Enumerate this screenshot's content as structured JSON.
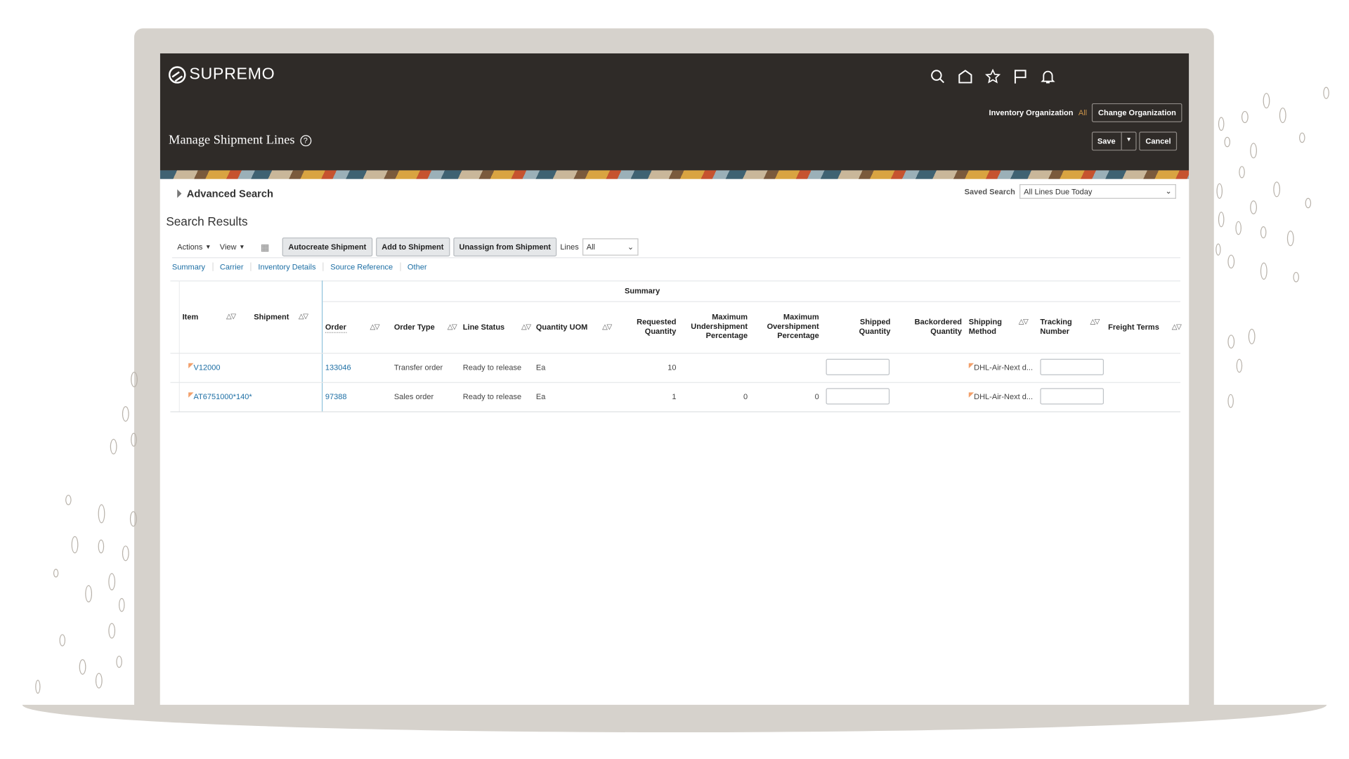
{
  "app": {
    "brand": "SUPREMO",
    "page_title": "Manage Shipment Lines"
  },
  "header_icons": [
    "search-icon",
    "home-icon",
    "star-icon",
    "flag-icon",
    "bell-icon"
  ],
  "org": {
    "label": "Inventory Organization",
    "value": "All",
    "change_button": "Change Organization"
  },
  "actions": {
    "save": "Save",
    "cancel": "Cancel"
  },
  "search": {
    "advanced": "Advanced Search",
    "saved_label": "Saved Search",
    "saved_value": "All Lines Due Today"
  },
  "results": {
    "title": "Search Results"
  },
  "toolbar": {
    "actions": "Actions",
    "view": "View",
    "autocreate": "Autocreate Shipment",
    "add": "Add to Shipment",
    "unassign": "Unassign from Shipment",
    "lines_label": "Lines",
    "lines_value": "All"
  },
  "tabs": [
    "Summary",
    "Carrier",
    "Inventory Details",
    "Source Reference",
    "Other"
  ],
  "table": {
    "group_header": "Summary",
    "columns": {
      "item": "Item",
      "shipment": "Shipment",
      "order": "Order",
      "order_type": "Order Type",
      "line_status": "Line Status",
      "uom": "Quantity UOM",
      "req_qty": [
        "Requested",
        "Quantity"
      ],
      "max_under": [
        "Maximum",
        "Undershipment",
        "Percentage"
      ],
      "max_over": [
        "Maximum",
        "Overshipment",
        "Percentage"
      ],
      "shipped": [
        "Shipped",
        "Quantity"
      ],
      "backordered": [
        "Backordered",
        "Quantity"
      ],
      "ship_method": [
        "Shipping",
        "Method"
      ],
      "tracking": [
        "Tracking",
        "Number"
      ],
      "freight": "Freight Terms"
    },
    "rows": [
      {
        "item": "V12000",
        "order": "133046",
        "order_type": "Transfer order",
        "line_status": "Ready to release",
        "uom": "Ea",
        "req_qty": "10",
        "max_under": "",
        "max_over": "",
        "ship_method": "DHL-Air-Next d..."
      },
      {
        "item": "AT6751000*140*",
        "order": "97388",
        "order_type": "Sales order",
        "line_status": "Ready to release",
        "uom": "Ea",
        "req_qty": "1",
        "max_under": "0",
        "max_over": "0",
        "ship_method": "DHL-Air-Next d..."
      }
    ]
  },
  "colors": {
    "header_bg": "#2f2b28",
    "link": "#1c6ea4",
    "accent_org": "#c8924a",
    "frame": "#d6d2cc"
  }
}
